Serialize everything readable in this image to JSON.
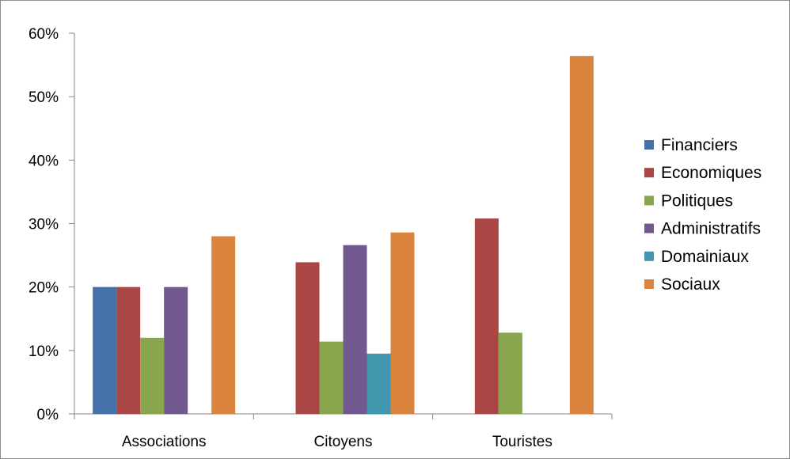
{
  "chart_data": {
    "type": "bar",
    "title": "",
    "xlabel": "",
    "ylabel": "",
    "categories": [
      "Associations",
      "Citoyens",
      "Touristes"
    ],
    "series": [
      {
        "name": "Financiers",
        "color": "#4472a8",
        "values": [
          20,
          0,
          0
        ]
      },
      {
        "name": "Economiques",
        "color": "#aa4643",
        "values": [
          20,
          23.9,
          30.8
        ]
      },
      {
        "name": "Politiques",
        "color": "#89a54e",
        "values": [
          12,
          11.4,
          12.8
        ]
      },
      {
        "name": "Administratifs",
        "color": "#71588f",
        "values": [
          20,
          26.6,
          0
        ]
      },
      {
        "name": "Domainiaux",
        "color": "#4198af",
        "values": [
          0,
          9.5,
          0
        ]
      },
      {
        "name": "Sociaux",
        "color": "#db843d",
        "values": [
          28,
          28.6,
          56.4
        ]
      }
    ],
    "ylim": [
      0,
      60
    ],
    "y_ticks": [
      "0%",
      "10%",
      "20%",
      "30%",
      "40%",
      "50%",
      "60%"
    ],
    "y_tick_values": [
      0,
      10,
      20,
      30,
      40,
      50,
      60
    ],
    "grid": false,
    "legend": "right"
  }
}
